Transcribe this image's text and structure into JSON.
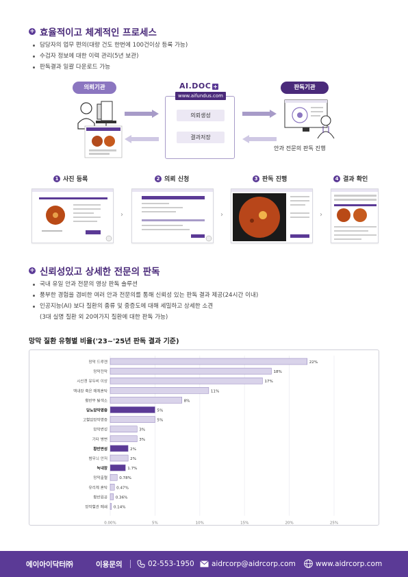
{
  "section1": {
    "title": "효율적이고 체계적인 프로세스",
    "bullets": [
      "담당자의 업무 편의(대량 건도 한번에 100건이상 등록 가능)",
      "수검자 정보에 대한 이력 관리(5년 보관)",
      "판독결과 일괄 다운로드 가능"
    ]
  },
  "process": {
    "requester_label": "의뢰기관",
    "reader_label": "판독기관",
    "brand": "AI.DOC",
    "url": "www.aifundus.com",
    "btn_request": "의뢰생성",
    "btn_save": "결과저장",
    "reader_caption": "안과 전문의 판독 진행"
  },
  "steps": [
    {
      "num": "1",
      "label": "사진 등록"
    },
    {
      "num": "2",
      "label": "의뢰 신청"
    },
    {
      "num": "3",
      "label": "판독 진행"
    },
    {
      "num": "4",
      "label": "결과 확인"
    }
  ],
  "section2": {
    "title": "신뢰성있고 상세한 전문의 판독",
    "bullets": [
      "국내 유일 안과 전문의 영상 판독 솔루션",
      "풍부한 경험을 겸비한 여러 안과 전문의를 통해 신뢰성 있는 판독 결과 제공(24시간 이내)",
      "인공지능(AI) 보다 질환의 종류 및 중증도에 대해 세밀하고 상세한 소견"
    ],
    "bullet_cont": "(3대 실명 질환 외 20여가지 질환에 대한 판독 가능)"
  },
  "chart_title": "망막 질환 유형별 비율('23~'25년 판독 결과 기준)",
  "chart_data": {
    "type": "bar",
    "orientation": "horizontal",
    "categories": [
      "망막 드루젠",
      "망막전막",
      "시신경 유두비 이상",
      "백내장 혹은 매체혼탁",
      "황반부 탈색소",
      "당뇨망막병증",
      "고혈압망막병증",
      "망막변성",
      "기타 병변",
      "황반변성",
      "범무늬 안저",
      "녹내장",
      "망막출혈",
      "유리체 혼탁",
      "황반원공",
      "망막혈관 폐쇄"
    ],
    "values": [
      22,
      18,
      17,
      11,
      8,
      5,
      5,
      3,
      3,
      2,
      2,
      1.7,
      0.78,
      0.47,
      0.36,
      0.14
    ],
    "value_labels": [
      "22%",
      "18%",
      "17%",
      "11%",
      "8%",
      "5%",
      "5%",
      "3%",
      "3%",
      "2%",
      "2%",
      "1.7%",
      "0.78%",
      "0.47%",
      "0.36%",
      "0.14%"
    ],
    "highlighted": [
      false,
      false,
      false,
      false,
      false,
      true,
      false,
      false,
      false,
      true,
      false,
      true,
      false,
      false,
      false,
      false
    ],
    "xticks": [
      "0.00%",
      "5%",
      "10%",
      "15%",
      "20%",
      "25%"
    ],
    "xlim": [
      0,
      25
    ],
    "colors": {
      "normal": "#d9d3ea",
      "highlight": "#5b3a96",
      "border": "#8a7ab8"
    }
  },
  "footer": {
    "company": "에이아이닥터㈜",
    "inquiry": "이용문의",
    "phone": "02-553-1950",
    "email": "aidrcorp@aidrcorp.com",
    "website": "www.aidrcorp.com"
  }
}
